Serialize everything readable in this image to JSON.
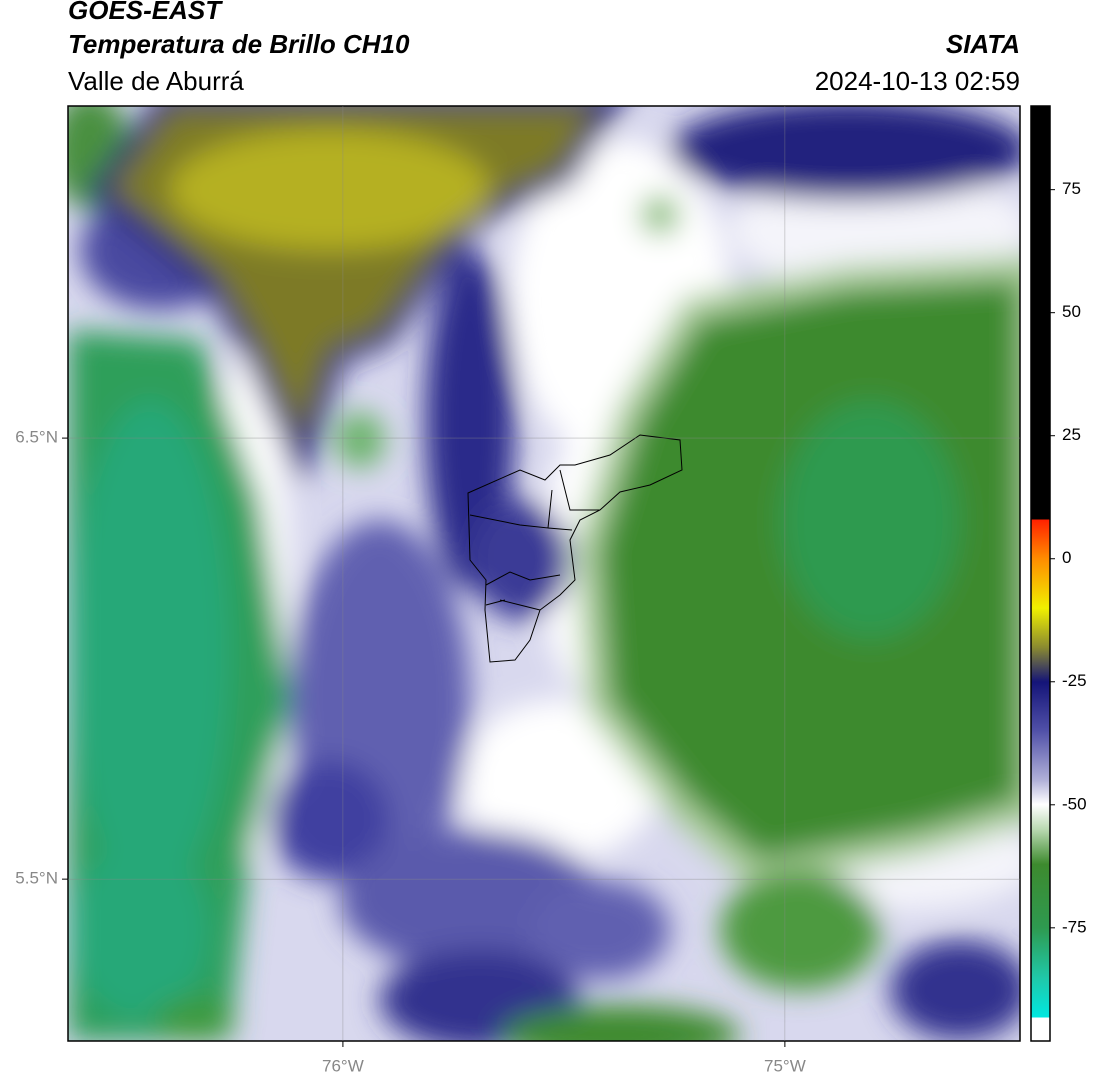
{
  "header": {
    "title": "GOES-EAST",
    "subtitle": "Temperatura de Brillo CH10",
    "region": "Valle de Aburrá",
    "source": "SIATA",
    "timestamp": "2024-10-13 02:59"
  },
  "map": {
    "xlim": [
      -76.622,
      -74.468
    ],
    "ylim": [
      5.133,
      7.253
    ],
    "xticks": [
      {
        "value": -76,
        "label": "76°W"
      },
      {
        "value": -75,
        "label": "75°W"
      }
    ],
    "yticks": [
      {
        "value": 6.5,
        "label": "6.5°N"
      },
      {
        "value": 5.5,
        "label": "5.5°N"
      }
    ],
    "grid": true
  },
  "colorbar": {
    "lim": [
      -98,
      92
    ],
    "ticks": [
      75,
      50,
      25,
      0,
      -25,
      -50,
      -75
    ]
  }
}
